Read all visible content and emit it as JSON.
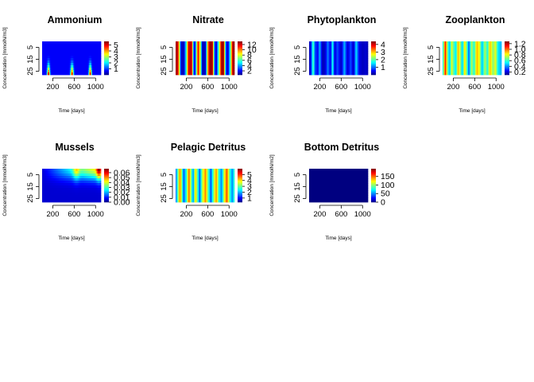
{
  "chart_data": [
    {
      "type": "heatmap",
      "title": "Ammonium",
      "xlabel": "Time [days]",
      "ylabel": "Concentration [mmolN/m3]",
      "x_ticks": [
        200,
        600,
        1000
      ],
      "y_ticks": [
        5,
        15,
        25
      ],
      "x_range": [
        0,
        1100
      ],
      "y_range": [
        28,
        0
      ],
      "z_range": [
        0,
        5.6
      ],
      "colorbar_ticks": [
        1,
        2,
        3,
        4,
        5
      ],
      "pattern": "blooms",
      "base": 0.12,
      "peaks": [
        {
          "t": 120,
          "z": 5.5,
          "wt": 25
        },
        {
          "t": 560,
          "z": 5.0,
          "wt": 28
        },
        {
          "t": 900,
          "z": 5.2,
          "wt": 25
        }
      ]
    },
    {
      "type": "heatmap",
      "title": "Nitrate",
      "xlabel": "Time [days]",
      "ylabel": "Concentration [mmolN/m3]",
      "x_ticks": [
        200,
        600,
        1000
      ],
      "y_ticks": [
        5,
        15,
        25
      ],
      "x_range": [
        0,
        1100
      ],
      "y_range": [
        28,
        0
      ],
      "z_range": [
        0.5,
        13.2
      ],
      "colorbar_ticks": [
        2,
        4,
        6,
        8,
        10,
        12
      ],
      "pattern": "stripes",
      "stripes": [
        {
          "t": 0,
          "v": 0.97
        },
        {
          "t": 40,
          "v": 0.92
        },
        {
          "t": 75,
          "v": 0.55
        },
        {
          "t": 100,
          "v": 0.08
        },
        {
          "t": 150,
          "v": 0.05
        },
        {
          "t": 200,
          "v": 0.4
        },
        {
          "t": 240,
          "v": 0.9
        },
        {
          "t": 300,
          "v": 0.95
        },
        {
          "t": 330,
          "v": 0.3
        },
        {
          "t": 360,
          "v": 0.08
        },
        {
          "t": 420,
          "v": 0.9
        },
        {
          "t": 470,
          "v": 0.5
        },
        {
          "t": 500,
          "v": 0.05
        },
        {
          "t": 560,
          "v": 0.08
        },
        {
          "t": 600,
          "v": 0.7
        },
        {
          "t": 640,
          "v": 0.97
        },
        {
          "t": 690,
          "v": 0.96
        },
        {
          "t": 720,
          "v": 0.3
        },
        {
          "t": 760,
          "v": 0.05
        },
        {
          "t": 820,
          "v": 0.6
        },
        {
          "t": 860,
          "v": 0.98
        },
        {
          "t": 900,
          "v": 0.95
        },
        {
          "t": 940,
          "v": 0.2
        },
        {
          "t": 980,
          "v": 0.07
        },
        {
          "t": 1030,
          "v": 0.5
        },
        {
          "t": 1070,
          "v": 0.98
        },
        {
          "t": 1100,
          "v": 0.95
        }
      ]
    },
    {
      "type": "heatmap",
      "title": "Phytoplankton",
      "xlabel": "Time [days]",
      "ylabel": "Concentration [mmolN/m3]",
      "x_ticks": [
        200,
        600,
        1000
      ],
      "y_ticks": [
        5,
        15,
        25
      ],
      "x_range": [
        0,
        1100
      ],
      "y_range": [
        28,
        0
      ],
      "z_range": [
        0,
        4.4
      ],
      "colorbar_ticks": [
        1,
        2,
        3,
        4
      ],
      "pattern": "stripes",
      "stripes": [
        {
          "t": 0,
          "v": 0.05
        },
        {
          "t": 30,
          "v": 0.1
        },
        {
          "t": 60,
          "v": 0.35
        },
        {
          "t": 80,
          "v": 0.45
        },
        {
          "t": 110,
          "v": 0.2
        },
        {
          "t": 160,
          "v": 0.12
        },
        {
          "t": 200,
          "v": 0.3
        },
        {
          "t": 250,
          "v": 0.05
        },
        {
          "t": 300,
          "v": 0.08
        },
        {
          "t": 350,
          "v": 0.25
        },
        {
          "t": 400,
          "v": 0.1
        },
        {
          "t": 440,
          "v": 0.4
        },
        {
          "t": 480,
          "v": 0.08
        },
        {
          "t": 530,
          "v": 0.2
        },
        {
          "t": 600,
          "v": 0.06
        },
        {
          "t": 660,
          "v": 0.3
        },
        {
          "t": 720,
          "v": 0.08
        },
        {
          "t": 780,
          "v": 0.2
        },
        {
          "t": 830,
          "v": 0.05
        },
        {
          "t": 880,
          "v": 0.35
        },
        {
          "t": 940,
          "v": 0.1
        },
        {
          "t": 1000,
          "v": 0.06
        },
        {
          "t": 1060,
          "v": 0.08
        },
        {
          "t": 1100,
          "v": 0.05
        }
      ]
    },
    {
      "type": "heatmap",
      "title": "Zooplankton",
      "xlabel": "Time [days]",
      "ylabel": "Concentration [mmolN/m3]",
      "x_ticks": [
        200,
        600,
        1000
      ],
      "y_ticks": [
        5,
        15,
        25
      ],
      "x_range": [
        0,
        1100
      ],
      "y_range": [
        28,
        0
      ],
      "z_range": [
        0.1,
        1.28
      ],
      "colorbar_ticks": [
        0.2,
        0.4,
        0.6,
        0.8,
        1.0,
        1.2
      ],
      "colorbar_tick_labels": [
        "0.2",
        "0.4",
        "0.6",
        "0.8",
        "1.0",
        "1.2"
      ],
      "pattern": "stripes",
      "stripes": [
        {
          "t": 0,
          "v": 0.25
        },
        {
          "t": 30,
          "v": 0.7
        },
        {
          "t": 55,
          "v": 0.85
        },
        {
          "t": 90,
          "v": 0.5
        },
        {
          "t": 130,
          "v": 0.3
        },
        {
          "t": 170,
          "v": 0.6
        },
        {
          "t": 210,
          "v": 0.45
        },
        {
          "t": 250,
          "v": 0.35
        },
        {
          "t": 290,
          "v": 0.7
        },
        {
          "t": 330,
          "v": 0.55
        },
        {
          "t": 370,
          "v": 0.3
        },
        {
          "t": 410,
          "v": 0.65
        },
        {
          "t": 450,
          "v": 0.5
        },
        {
          "t": 490,
          "v": 0.2
        },
        {
          "t": 540,
          "v": 0.55
        },
        {
          "t": 590,
          "v": 0.4
        },
        {
          "t": 640,
          "v": 0.7
        },
        {
          "t": 690,
          "v": 0.6
        },
        {
          "t": 740,
          "v": 0.3
        },
        {
          "t": 790,
          "v": 0.55
        },
        {
          "t": 840,
          "v": 0.4
        },
        {
          "t": 890,
          "v": 0.7
        },
        {
          "t": 940,
          "v": 0.5
        },
        {
          "t": 990,
          "v": 0.6
        },
        {
          "t": 1040,
          "v": 0.35
        },
        {
          "t": 1100,
          "v": 0.3
        }
      ]
    },
    {
      "type": "heatmap",
      "title": "Mussels",
      "xlabel": "Time [days]",
      "ylabel": "Concentration [mmolN/m3]",
      "x_ticks": [
        200,
        600,
        1000
      ],
      "y_ticks": [
        5,
        15,
        25
      ],
      "x_range": [
        0,
        1100
      ],
      "y_range": [
        28,
        0
      ],
      "z_range": [
        0,
        0.068
      ],
      "colorbar_ticks": [
        0.0,
        0.01,
        0.02,
        0.03,
        0.04,
        0.05,
        0.06
      ],
      "colorbar_tick_labels": [
        "0.00",
        "0.01",
        "0.02",
        "0.03",
        "0.04",
        "0.05",
        "0.06"
      ],
      "pattern": "mussels"
    },
    {
      "type": "heatmap",
      "title": "Pelagic Detritus",
      "xlabel": "Time [days]",
      "ylabel": "Concentration [mmolN/m3]",
      "x_ticks": [
        200,
        600,
        1000
      ],
      "y_ticks": [
        5,
        15,
        25
      ],
      "x_range": [
        0,
        1100
      ],
      "y_range": [
        28,
        0
      ],
      "z_range": [
        0.3,
        6.0
      ],
      "colorbar_ticks": [
        1,
        2,
        3,
        4,
        5
      ],
      "pattern": "stripes",
      "stripes": [
        {
          "t": 0,
          "v": 0.2
        },
        {
          "t": 40,
          "v": 0.45
        },
        {
          "t": 80,
          "v": 0.75
        },
        {
          "t": 110,
          "v": 0.55
        },
        {
          "t": 150,
          "v": 0.2
        },
        {
          "t": 200,
          "v": 0.4
        },
        {
          "t": 250,
          "v": 0.8
        },
        {
          "t": 290,
          "v": 0.5
        },
        {
          "t": 330,
          "v": 0.25
        },
        {
          "t": 370,
          "v": 0.7
        },
        {
          "t": 410,
          "v": 0.45
        },
        {
          "t": 450,
          "v": 0.2
        },
        {
          "t": 500,
          "v": 0.55
        },
        {
          "t": 560,
          "v": 0.75
        },
        {
          "t": 610,
          "v": 0.45
        },
        {
          "t": 660,
          "v": 0.2
        },
        {
          "t": 710,
          "v": 0.5
        },
        {
          "t": 760,
          "v": 0.75
        },
        {
          "t": 810,
          "v": 0.4
        },
        {
          "t": 860,
          "v": 0.25
        },
        {
          "t": 910,
          "v": 0.6
        },
        {
          "t": 960,
          "v": 0.8
        },
        {
          "t": 1010,
          "v": 0.45
        },
        {
          "t": 1060,
          "v": 0.25
        },
        {
          "t": 1100,
          "v": 0.45
        }
      ]
    },
    {
      "type": "heatmap",
      "title": "Bottom Detritus",
      "xlabel": "Time [days]",
      "ylabel": "Concentration [mmolN/m2]",
      "x_ticks": [
        200,
        600,
        1000
      ],
      "y_ticks": [
        5,
        15,
        25
      ],
      "x_range": [
        0,
        1100
      ],
      "y_range": [
        28,
        0
      ],
      "z_range": [
        0,
        195
      ],
      "colorbar_ticks": [
        0,
        50,
        100,
        150
      ],
      "pattern": "uniform",
      "value": 0
    }
  ]
}
